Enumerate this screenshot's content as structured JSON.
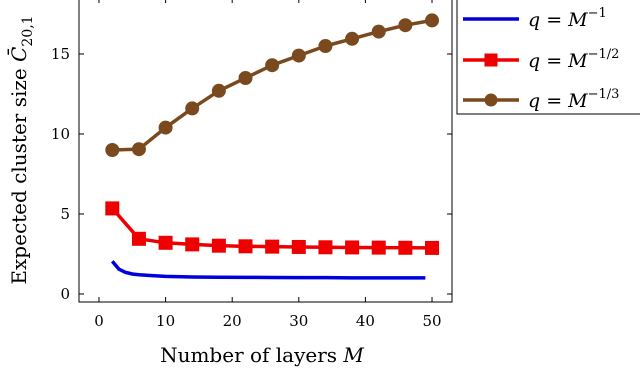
{
  "chart_data": {
    "type": "line",
    "title": "",
    "xlabel": "Number of layers M",
    "ylabel": "Expected cluster size C̄20,1",
    "xlim": [
      -3,
      53
    ],
    "ylim": [
      -0.5,
      18.5
    ],
    "xticks": [
      0,
      10,
      20,
      30,
      40,
      50
    ],
    "yticks": [
      0,
      5,
      10,
      15
    ],
    "legend_position": "outside-top-right",
    "grid": false,
    "series": [
      {
        "name": "q = M^-1",
        "legend_text": "q = M⁻¹",
        "color": "#0000dd",
        "marker": "none",
        "x": [
          2,
          3,
          4,
          5,
          6,
          8,
          10,
          14,
          18,
          22,
          26,
          30,
          34,
          38,
          42,
          46,
          49
        ],
        "y": [
          2.05,
          1.55,
          1.35,
          1.25,
          1.2,
          1.15,
          1.1,
          1.06,
          1.05,
          1.04,
          1.03,
          1.02,
          1.02,
          1.01,
          1.01,
          1.01,
          1.01
        ]
      },
      {
        "name": "q = M^-1/2",
        "legend_text": "q = M⁻¹ᐟ²",
        "color": "#ee0000",
        "marker": "square",
        "x": [
          2,
          6,
          10,
          14,
          18,
          22,
          26,
          30,
          34,
          38,
          42,
          46,
          50
        ],
        "y": [
          5.35,
          3.45,
          3.2,
          3.1,
          3.02,
          2.98,
          2.96,
          2.94,
          2.92,
          2.91,
          2.9,
          2.89,
          2.88
        ]
      },
      {
        "name": "q = M^-1/3",
        "legend_text": "q = M⁻¹ᐟ³",
        "color": "#7a4a1e",
        "marker": "circle",
        "x": [
          2,
          6,
          10,
          14,
          18,
          22,
          26,
          30,
          34,
          38,
          42,
          46,
          50
        ],
        "y": [
          9.0,
          9.05,
          10.4,
          11.6,
          12.7,
          13.5,
          14.3,
          14.9,
          15.5,
          15.95,
          16.4,
          16.8,
          17.1
        ]
      }
    ]
  }
}
